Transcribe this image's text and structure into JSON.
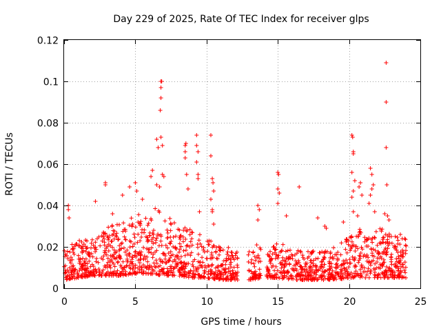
{
  "chart_data": {
    "type": "scatter",
    "title": "Day 229 of 2025, Rate Of TEC Index for receiver glps",
    "xlabel": "GPS time / hours",
    "ylabel": "ROTI / TECUs",
    "xlim": [
      0,
      25
    ],
    "ylim": [
      0,
      0.12
    ],
    "x_ticks": [
      0,
      5,
      10,
      15,
      20,
      25
    ],
    "x_tick_labels": [
      "0",
      "5",
      "10",
      "15",
      "20",
      "25"
    ],
    "y_ticks": [
      0,
      0.02,
      0.04,
      0.06,
      0.08,
      0.1,
      0.12
    ],
    "y_tick_labels": [
      "0",
      "0.02",
      "0.04",
      "0.06",
      "0.08",
      "0.1",
      "0.12"
    ],
    "grid": true,
    "marker": "+",
    "color": "#ff0000",
    "data_coverage": {
      "start_hour": 0,
      "end_hour": 24,
      "gap_hours": [
        [
          12.2,
          12.9
        ],
        [
          13.8,
          14.2
        ]
      ]
    },
    "envelope": {
      "hours": [
        0,
        1,
        2,
        3,
        4,
        5,
        6,
        7,
        8,
        9,
        10,
        11,
        12,
        13,
        14,
        15,
        16,
        17,
        18,
        19,
        20,
        21,
        22,
        23,
        24
      ],
      "max": [
        0.02,
        0.023,
        0.025,
        0.03,
        0.032,
        0.035,
        0.04,
        0.038,
        0.03,
        0.03,
        0.025,
        0.02,
        0.02,
        0.018,
        0.024,
        0.022,
        0.02,
        0.018,
        0.018,
        0.02,
        0.025,
        0.03,
        0.03,
        0.026,
        0.024
      ],
      "dense_min": [
        0.004,
        0.005,
        0.006,
        0.006,
        0.006,
        0.007,
        0.007,
        0.006,
        0.006,
        0.005,
        0.005,
        0.004,
        0.004,
        0.004,
        0.005,
        0.005,
        0.004,
        0.004,
        0.004,
        0.004,
        0.005,
        0.005,
        0.005,
        0.005,
        0.005
      ]
    },
    "outliers": [
      {
        "x": 0.3,
        "y": 0.04
      },
      {
        "x": 0.3,
        "y": 0.038
      },
      {
        "x": 0.35,
        "y": 0.034
      },
      {
        "x": 2.2,
        "y": 0.042
      },
      {
        "x": 2.9,
        "y": 0.051
      },
      {
        "x": 2.9,
        "y": 0.05
      },
      {
        "x": 3.4,
        "y": 0.036
      },
      {
        "x": 4.1,
        "y": 0.045
      },
      {
        "x": 4.6,
        "y": 0.049
      },
      {
        "x": 5.0,
        "y": 0.051
      },
      {
        "x": 5.1,
        "y": 0.047
      },
      {
        "x": 5.5,
        "y": 0.043
      },
      {
        "x": 6.1,
        "y": 0.054
      },
      {
        "x": 6.2,
        "y": 0.057
      },
      {
        "x": 6.5,
        "y": 0.072
      },
      {
        "x": 6.6,
        "y": 0.068
      },
      {
        "x": 6.5,
        "y": 0.05
      },
      {
        "x": 6.7,
        "y": 0.049
      },
      {
        "x": 6.8,
        "y": 0.1
      },
      {
        "x": 6.85,
        "y": 0.1
      },
      {
        "x": 6.8,
        "y": 0.097
      },
      {
        "x": 6.8,
        "y": 0.092
      },
      {
        "x": 6.75,
        "y": 0.086
      },
      {
        "x": 6.8,
        "y": 0.073
      },
      {
        "x": 6.9,
        "y": 0.069
      },
      {
        "x": 6.9,
        "y": 0.055
      },
      {
        "x": 7.0,
        "y": 0.054
      },
      {
        "x": 8.5,
        "y": 0.069
      },
      {
        "x": 8.55,
        "y": 0.07
      },
      {
        "x": 8.5,
        "y": 0.066
      },
      {
        "x": 8.5,
        "y": 0.063
      },
      {
        "x": 8.6,
        "y": 0.055
      },
      {
        "x": 8.7,
        "y": 0.048
      },
      {
        "x": 9.3,
        "y": 0.074
      },
      {
        "x": 9.3,
        "y": 0.069
      },
      {
        "x": 9.4,
        "y": 0.066
      },
      {
        "x": 9.3,
        "y": 0.061
      },
      {
        "x": 9.4,
        "y": 0.055
      },
      {
        "x": 9.4,
        "y": 0.053
      },
      {
        "x": 9.5,
        "y": 0.037
      },
      {
        "x": 10.3,
        "y": 0.074
      },
      {
        "x": 10.3,
        "y": 0.064
      },
      {
        "x": 10.4,
        "y": 0.053
      },
      {
        "x": 10.45,
        "y": 0.051
      },
      {
        "x": 10.5,
        "y": 0.047
      },
      {
        "x": 10.3,
        "y": 0.043
      },
      {
        "x": 10.4,
        "y": 0.038
      },
      {
        "x": 10.4,
        "y": 0.037
      },
      {
        "x": 10.5,
        "y": 0.031
      },
      {
        "x": 13.6,
        "y": 0.04
      },
      {
        "x": 13.7,
        "y": 0.038
      },
      {
        "x": 13.6,
        "y": 0.033
      },
      {
        "x": 15.0,
        "y": 0.056
      },
      {
        "x": 15.05,
        "y": 0.055
      },
      {
        "x": 15.0,
        "y": 0.048
      },
      {
        "x": 15.1,
        "y": 0.046
      },
      {
        "x": 15.0,
        "y": 0.041
      },
      {
        "x": 15.6,
        "y": 0.035
      },
      {
        "x": 16.5,
        "y": 0.049
      },
      {
        "x": 17.8,
        "y": 0.034
      },
      {
        "x": 18.3,
        "y": 0.03
      },
      {
        "x": 18.4,
        "y": 0.029
      },
      {
        "x": 19.6,
        "y": 0.032
      },
      {
        "x": 20.2,
        "y": 0.074
      },
      {
        "x": 20.25,
        "y": 0.073
      },
      {
        "x": 20.3,
        "y": 0.066
      },
      {
        "x": 20.3,
        "y": 0.065
      },
      {
        "x": 20.2,
        "y": 0.056
      },
      {
        "x": 20.4,
        "y": 0.052
      },
      {
        "x": 20.3,
        "y": 0.047
      },
      {
        "x": 20.2,
        "y": 0.044
      },
      {
        "x": 20.3,
        "y": 0.037
      },
      {
        "x": 20.8,
        "y": 0.051
      },
      {
        "x": 20.7,
        "y": 0.049
      },
      {
        "x": 20.9,
        "y": 0.045
      },
      {
        "x": 20.6,
        "y": 0.035
      },
      {
        "x": 21.5,
        "y": 0.058
      },
      {
        "x": 21.6,
        "y": 0.055
      },
      {
        "x": 21.7,
        "y": 0.05
      },
      {
        "x": 21.6,
        "y": 0.048
      },
      {
        "x": 21.5,
        "y": 0.045
      },
      {
        "x": 21.4,
        "y": 0.041
      },
      {
        "x": 21.8,
        "y": 0.037
      },
      {
        "x": 22.6,
        "y": 0.109
      },
      {
        "x": 22.6,
        "y": 0.09
      },
      {
        "x": 22.6,
        "y": 0.068
      },
      {
        "x": 22.65,
        "y": 0.05
      },
      {
        "x": 22.5,
        "y": 0.036
      },
      {
        "x": 22.7,
        "y": 0.035
      },
      {
        "x": 22.8,
        "y": 0.033
      },
      {
        "x": 23.6,
        "y": 0.026
      },
      {
        "x": 23.9,
        "y": 0.024
      }
    ]
  }
}
